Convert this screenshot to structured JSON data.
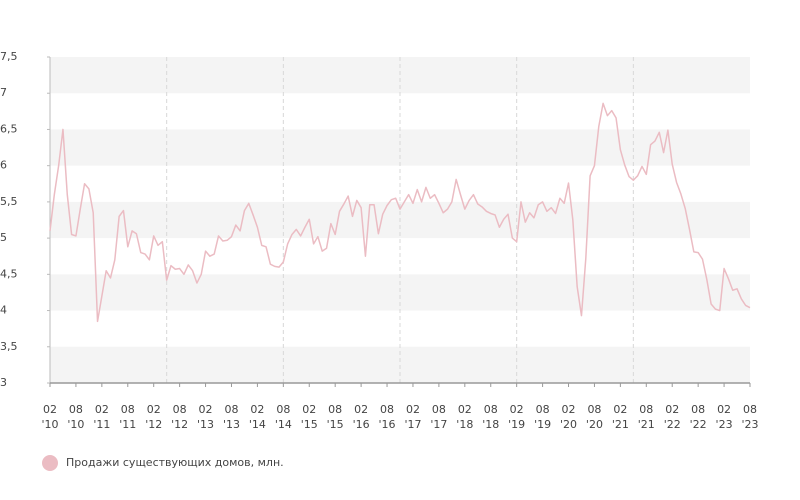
{
  "chart_data": {
    "type": "line",
    "x": [
      "2010-02",
      "2010-03",
      "2010-04",
      "2010-05",
      "2010-06",
      "2010-07",
      "2010-08",
      "2010-09",
      "2010-10",
      "2010-11",
      "2010-12",
      "2011-01",
      "2011-02",
      "2011-03",
      "2011-04",
      "2011-05",
      "2011-06",
      "2011-07",
      "2011-08",
      "2011-09",
      "2011-10",
      "2011-11",
      "2011-12",
      "2012-01",
      "2012-02",
      "2012-03",
      "2012-04",
      "2012-05",
      "2012-06",
      "2012-07",
      "2012-08",
      "2012-09",
      "2012-10",
      "2012-11",
      "2012-12",
      "2013-01",
      "2013-02",
      "2013-03",
      "2013-04",
      "2013-05",
      "2013-06",
      "2013-07",
      "2013-08",
      "2013-09",
      "2013-10",
      "2013-11",
      "2013-12",
      "2014-01",
      "2014-02",
      "2014-03",
      "2014-04",
      "2014-05",
      "2014-06",
      "2014-07",
      "2014-08",
      "2014-09",
      "2014-10",
      "2014-11",
      "2014-12",
      "2015-01",
      "2015-02",
      "2015-03",
      "2015-04",
      "2015-05",
      "2015-06",
      "2015-07",
      "2015-08",
      "2015-09",
      "2015-10",
      "2015-11",
      "2015-12",
      "2016-01",
      "2016-02",
      "2016-03",
      "2016-04",
      "2016-05",
      "2016-06",
      "2016-07",
      "2016-08",
      "2016-09",
      "2016-10",
      "2016-11",
      "2016-12",
      "2017-01",
      "2017-02",
      "2017-03",
      "2017-04",
      "2017-05",
      "2017-06",
      "2017-07",
      "2017-08",
      "2017-09",
      "2017-10",
      "2017-11",
      "2017-12",
      "2018-01",
      "2018-02",
      "2018-03",
      "2018-04",
      "2018-05",
      "2018-06",
      "2018-07",
      "2018-08",
      "2018-09",
      "2018-10",
      "2018-11",
      "2018-12",
      "2019-01",
      "2019-02",
      "2019-03",
      "2019-04",
      "2019-05",
      "2019-06",
      "2019-07",
      "2019-08",
      "2019-09",
      "2019-10",
      "2019-11",
      "2019-12",
      "2020-01",
      "2020-02",
      "2020-03",
      "2020-04",
      "2020-05",
      "2020-06",
      "2020-07",
      "2020-08",
      "2020-09",
      "2020-10",
      "2020-11",
      "2020-12",
      "2021-01",
      "2021-02",
      "2021-03",
      "2021-04",
      "2021-05",
      "2021-06",
      "2021-07",
      "2021-08",
      "2021-09",
      "2021-10",
      "2021-11",
      "2021-12",
      "2022-01",
      "2022-02",
      "2022-03",
      "2022-04",
      "2022-05",
      "2022-06",
      "2022-07",
      "2022-08",
      "2022-09",
      "2022-10",
      "2022-11",
      "2022-12",
      "2023-01",
      "2023-02",
      "2023-03",
      "2023-04",
      "2023-05",
      "2023-06",
      "2023-07",
      "2023-08"
    ],
    "series": [
      {
        "name": "Продажи существующих домов, млн.",
        "color": "#ebbcc3",
        "values": [
          5.1,
          5.6,
          6.0,
          6.5,
          5.6,
          5.05,
          5.03,
          5.4,
          5.75,
          5.68,
          5.35,
          3.85,
          4.2,
          4.55,
          4.45,
          4.7,
          5.3,
          5.38,
          4.88,
          5.1,
          5.06,
          4.8,
          4.78,
          4.7,
          5.03,
          4.9,
          4.95,
          4.42,
          4.62,
          4.57,
          4.58,
          4.5,
          4.63,
          4.55,
          4.38,
          4.5,
          4.82,
          4.75,
          4.78,
          5.03,
          4.96,
          4.97,
          5.02,
          5.18,
          5.1,
          5.38,
          5.48,
          5.32,
          5.15,
          4.9,
          4.88,
          4.64,
          4.61,
          4.6,
          4.67,
          4.92,
          5.05,
          5.12,
          5.03,
          5.15,
          5.26,
          4.92,
          5.02,
          4.82,
          4.86,
          5.2,
          5.05,
          5.37,
          5.47,
          5.58,
          5.3,
          5.52,
          5.42,
          4.75,
          5.46,
          5.46,
          5.06,
          5.33,
          5.45,
          5.53,
          5.55,
          5.4,
          5.5,
          5.6,
          5.48,
          5.67,
          5.5,
          5.7,
          5.55,
          5.6,
          5.48,
          5.35,
          5.4,
          5.5,
          5.81,
          5.6,
          5.4,
          5.52,
          5.6,
          5.47,
          5.43,
          5.37,
          5.34,
          5.32,
          5.15,
          5.26,
          5.33,
          5.0,
          4.95,
          5.5,
          5.22,
          5.35,
          5.28,
          5.46,
          5.5,
          5.37,
          5.42,
          5.34,
          5.55,
          5.48,
          5.76,
          5.25,
          4.33,
          3.93,
          4.72,
          5.86,
          6.0,
          6.54,
          6.86,
          6.69,
          6.76,
          6.66,
          6.22,
          6.01,
          5.85,
          5.8,
          5.86,
          5.99,
          5.88,
          6.29,
          6.34,
          6.46,
          6.18,
          6.49,
          6.02,
          5.77,
          5.61,
          5.41,
          5.12,
          4.81,
          4.8,
          4.71,
          4.43,
          4.09,
          4.02,
          4.0,
          4.58,
          4.44,
          4.28,
          4.3,
          4.16,
          4.07,
          4.04
        ]
      }
    ],
    "xlim": [
      "2010-02",
      "2023-08"
    ],
    "xticks": [
      {
        "value": "2010-02",
        "label": "02 '10"
      },
      {
        "value": "2010-08",
        "label": "08 '10"
      },
      {
        "value": "2011-02",
        "label": "02 '11"
      },
      {
        "value": "2011-08",
        "label": "08 '11"
      },
      {
        "value": "2012-02",
        "label": "02 '12"
      },
      {
        "value": "2012-08",
        "label": "08 '12"
      },
      {
        "value": "2013-02",
        "label": "02 '13"
      },
      {
        "value": "2013-08",
        "label": "08 '13"
      },
      {
        "value": "2014-02",
        "label": "02 '14"
      },
      {
        "value": "2014-08",
        "label": "08 '14"
      },
      {
        "value": "2015-02",
        "label": "02 '15"
      },
      {
        "value": "2015-08",
        "label": "08 '15"
      },
      {
        "value": "2016-02",
        "label": "02 '16"
      },
      {
        "value": "2016-08",
        "label": "08 '16"
      },
      {
        "value": "2017-02",
        "label": "02 '17"
      },
      {
        "value": "2017-08",
        "label": "08 '17"
      },
      {
        "value": "2018-02",
        "label": "02 '18"
      },
      {
        "value": "2018-08",
        "label": "08 '18"
      },
      {
        "value": "2019-02",
        "label": "02 '19"
      },
      {
        "value": "2019-08",
        "label": "08 '19"
      },
      {
        "value": "2020-02",
        "label": "02 '20"
      },
      {
        "value": "2020-08",
        "label": "08 '20"
      },
      {
        "value": "2021-02",
        "label": "02 '21"
      },
      {
        "value": "2021-08",
        "label": "08 '21"
      },
      {
        "value": "2022-02",
        "label": "02 '22"
      },
      {
        "value": "2022-08",
        "label": "08 '22"
      },
      {
        "value": "2023-02",
        "label": "02 '23"
      },
      {
        "value": "2023-08",
        "label": "08 '23"
      }
    ],
    "ylim": [
      3,
      7.5
    ],
    "yticks": [
      3,
      {
        "value": 3.5,
        "label": "3,5"
      },
      4,
      {
        "value": 4.5,
        "label": "4,5"
      },
      5,
      {
        "value": 5.5,
        "label": "5,5"
      },
      6,
      {
        "value": 6.5,
        "label": "6,5"
      },
      7,
      {
        "value": 7.5,
        "label": "7,5"
      }
    ],
    "grid": true,
    "legend": "bottom-left"
  }
}
